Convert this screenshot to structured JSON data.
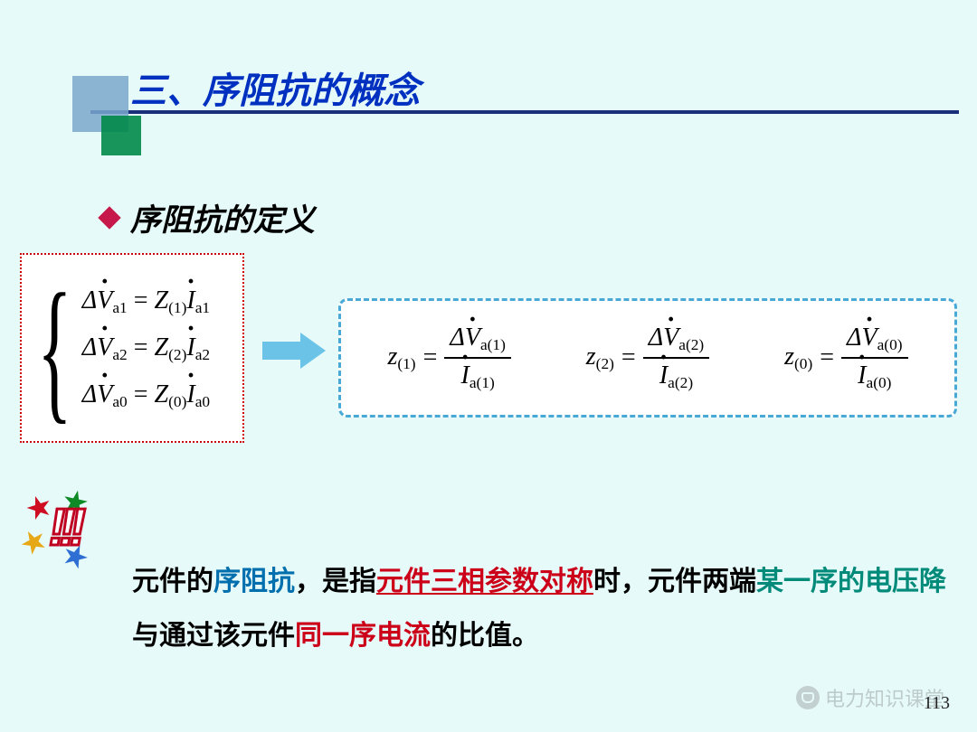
{
  "slide": {
    "title": "三、序阻抗的概念",
    "subtitle": "序阻抗的定义",
    "page_number": "113",
    "background_color": "#e6faf9",
    "title_color": "#0030c0",
    "underline_color": "#1a2f7a",
    "decor_colors": {
      "large_square": "#7aa7cc",
      "small_square": "#008a48"
    },
    "diamond_bullet_color": "#c6184a",
    "left_box_border_color": "#cc0000",
    "right_box_border_color": "#48a8d6",
    "arrow_color": "#6cc3e8",
    "font_family_heading": "KaiTi",
    "font_family_math": "Times New Roman",
    "title_fontsize_pt": 30,
    "subtitle_fontsize_pt": 25,
    "body_fontsize_pt": 22,
    "math_fontsize_pt": 21
  },
  "equations_left": {
    "rows": [
      {
        "delta": "Δ",
        "V": "V",
        "Vsub": "a1",
        "eq": " = ",
        "Z": "Z",
        "Zsub": "(1)",
        "I": "I",
        "Isub": "a1"
      },
      {
        "delta": "Δ",
        "V": "V",
        "Vsub": "a2",
        "eq": " = ",
        "Z": "Z",
        "Zsub": "(2)",
        "I": "I",
        "Isub": "a2"
      },
      {
        "delta": "Δ",
        "V": "V",
        "Vsub": "a0",
        "eq": " = ",
        "Z": "Z",
        "Zsub": "(0)",
        "I": "I",
        "Isub": "a0"
      }
    ]
  },
  "equations_right": {
    "items": [
      {
        "z": "z",
        "zsub": "(1)",
        "eq": " = ",
        "num_delta": "Δ",
        "num_V": "V",
        "num_sub": "a(1)",
        "den_I": "I",
        "den_sub": "a(1)"
      },
      {
        "z": "z",
        "zsub": "(2)",
        "eq": " = ",
        "num_delta": "Δ",
        "num_V": "V",
        "num_sub": "a(2)",
        "den_I": "I",
        "den_sub": "a(2)"
      },
      {
        "z": "z",
        "zsub": "(0)",
        "eq": " = ",
        "num_delta": "Δ",
        "num_V": "V",
        "num_sub": "a(0)",
        "den_I": "I",
        "den_sub": "a(0)"
      }
    ]
  },
  "body": {
    "p1": "元件的",
    "p2": "序阻抗",
    "p3": "，是指",
    "p4": "元件三相参数对称",
    "p5": "时，元件两端",
    "p6": "某一序的电压降",
    "p7": "与通过该元件",
    "p8": "同一序电流",
    "p9": "的比值。",
    "colors": {
      "plain": "#000000",
      "blue": "#006fae",
      "red_underline": "#cc0018",
      "teal": "#008a7a",
      "red": "#cc0018"
    }
  },
  "watermark": {
    "text": "电力知识课堂"
  }
}
